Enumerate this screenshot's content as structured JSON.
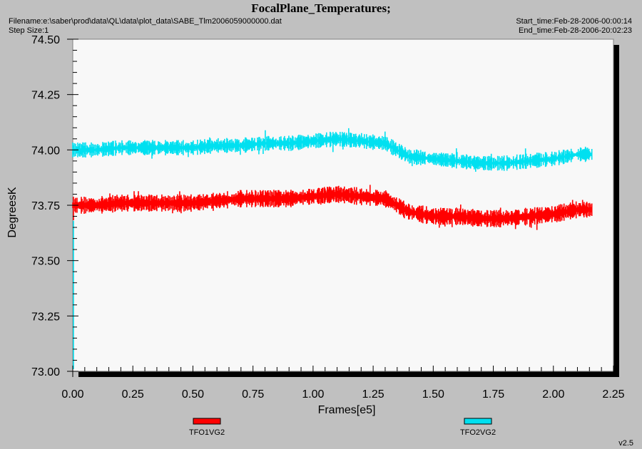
{
  "header": {
    "title": "FocalPlane_Temperatures;",
    "filename": "Filename:e:\\saber\\prod\\data\\QL\\data\\plot_data\\SABE_Tlm2006059000000.dat",
    "step_size": "Step Size:1",
    "start_time": "Start_time:Feb-28-2006-00:00:14",
    "end_time": "End_time:Feb-28-2006-20:02:23",
    "version": "v2.5"
  },
  "colors": {
    "background": "#c0c0c0",
    "plot_area": "#f8f8f8",
    "series1": "#ff0000",
    "series2": "#00e0f0"
  },
  "chart_data": {
    "type": "line",
    "title": "FocalPlane_Temperatures;",
    "xlabel": "Frames[e5]",
    "ylabel": "DegreesK",
    "xlim": [
      0.0,
      2.25
    ],
    "ylim": [
      73.0,
      74.5
    ],
    "xticks": [
      "0.00",
      "0.25",
      "0.50",
      "0.75",
      "1.00",
      "1.25",
      "1.50",
      "1.75",
      "2.00",
      "2.25"
    ],
    "yticks": [
      "73.00",
      "73.25",
      "73.50",
      "73.75",
      "74.00",
      "74.25",
      "74.50"
    ],
    "grid": false,
    "legend_position": "bottom",
    "series": [
      {
        "name": "TFO1VG2",
        "color": "#ff0000",
        "noise_band": 0.05,
        "x": [
          0.0,
          0.1,
          0.2,
          0.3,
          0.4,
          0.5,
          0.6,
          0.7,
          0.8,
          0.9,
          1.0,
          1.1,
          1.2,
          1.3,
          1.35,
          1.4,
          1.5,
          1.6,
          1.7,
          1.8,
          1.9,
          2.0,
          2.1,
          2.16
        ],
        "y": [
          73.75,
          73.75,
          73.76,
          73.76,
          73.76,
          73.76,
          73.77,
          73.78,
          73.78,
          73.78,
          73.79,
          73.8,
          73.79,
          73.78,
          73.75,
          73.72,
          73.7,
          73.7,
          73.69,
          73.69,
          73.7,
          73.71,
          73.73,
          73.73
        ]
      },
      {
        "name": "TFO2VG2",
        "color": "#00e0f0",
        "noise_band": 0.04,
        "x": [
          0.0,
          0.1,
          0.2,
          0.3,
          0.4,
          0.5,
          0.6,
          0.7,
          0.8,
          0.9,
          1.0,
          1.1,
          1.2,
          1.3,
          1.35,
          1.4,
          1.5,
          1.6,
          1.7,
          1.8,
          1.9,
          2.0,
          2.1,
          2.16
        ],
        "y": [
          74.0,
          74.0,
          74.01,
          74.01,
          74.01,
          74.01,
          74.02,
          74.02,
          74.03,
          74.03,
          74.04,
          74.05,
          74.04,
          74.03,
          74.0,
          73.97,
          73.96,
          73.95,
          73.94,
          73.94,
          73.95,
          73.96,
          73.98,
          73.98
        ]
      }
    ]
  }
}
